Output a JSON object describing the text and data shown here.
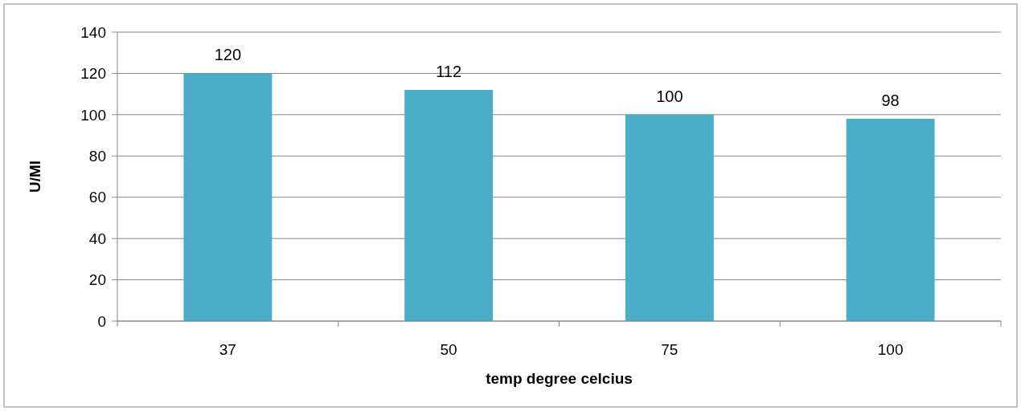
{
  "chart_data": {
    "type": "bar",
    "xlabel": "temp degree celcius",
    "ylabel": "U/Ml",
    "categories": [
      "37",
      "50",
      "75",
      "100"
    ],
    "values": [
      120,
      112,
      100,
      98
    ],
    "color": "#4bacc6",
    "ylim": [
      0,
      140
    ],
    "yticks": [
      0,
      20,
      40,
      60,
      80,
      100,
      120,
      140
    ],
    "grid": "y",
    "data_labels": true
  }
}
